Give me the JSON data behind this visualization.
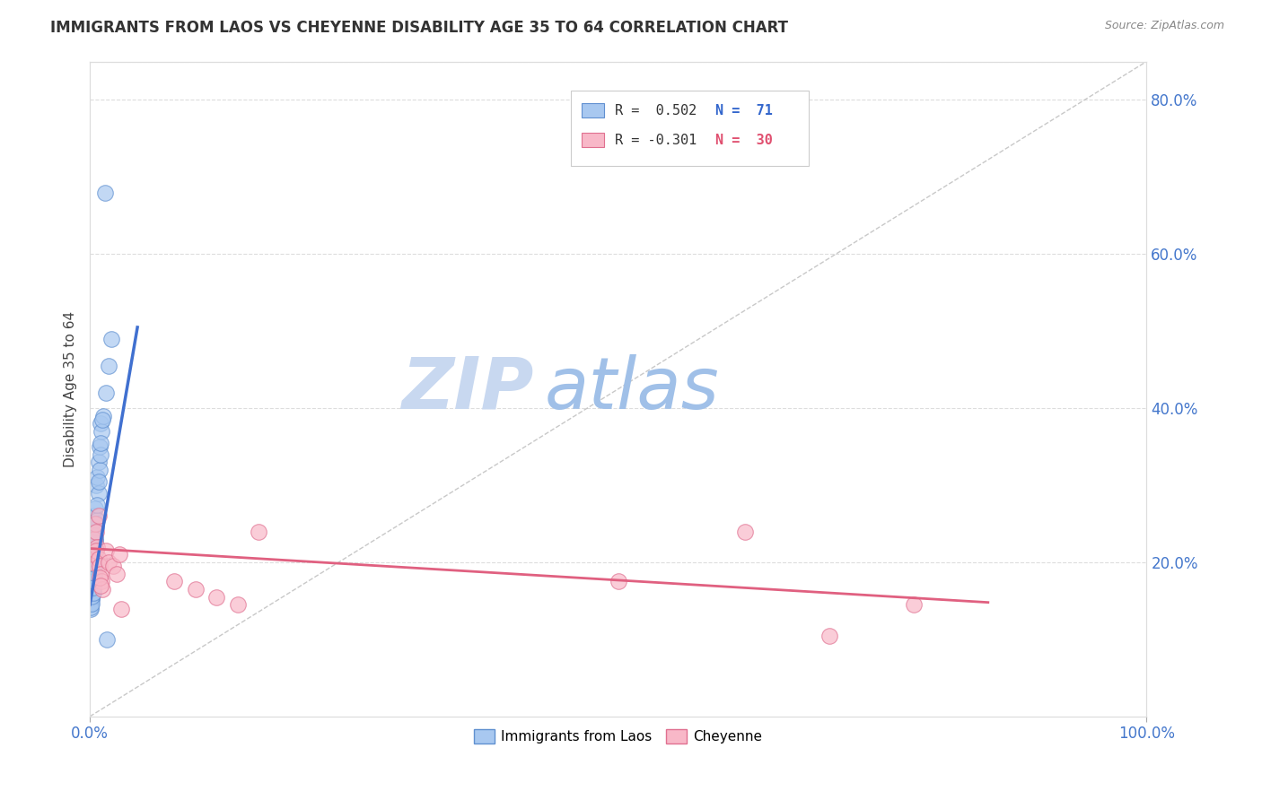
{
  "title": "IMMIGRANTS FROM LAOS VS CHEYENNE DISABILITY AGE 35 TO 64 CORRELATION CHART",
  "source": "Source: ZipAtlas.com",
  "ylabel": "Disability Age 35 to 64",
  "xlim": [
    0.0,
    1.0
  ],
  "ylim": [
    0.0,
    0.85
  ],
  "xtick_positions": [
    0.0,
    1.0
  ],
  "xtick_labels": [
    "0.0%",
    "100.0%"
  ],
  "ytick_positions": [
    0.0,
    0.2,
    0.4,
    0.6,
    0.8
  ],
  "ytick_labels": [
    "",
    "20.0%",
    "40.0%",
    "60.0%",
    "80.0%"
  ],
  "blue_color": "#A8C8F0",
  "pink_color": "#F8B8C8",
  "blue_edge": "#6090D0",
  "pink_edge": "#E07090",
  "blue_line_color": "#4070D0",
  "pink_line_color": "#E06080",
  "ref_line_color": "#BBBBBB",
  "watermark_zip": "ZIP",
  "watermark_atlas": "atlas",
  "watermark_color_zip": "#C8D8F0",
  "watermark_color_atlas": "#A0C0E8",
  "legend_r_blue": "R =  0.502",
  "legend_n_blue": "N =  71",
  "legend_r_pink": "R = -0.301",
  "legend_n_pink": "N =  30",
  "legend_label_blue": "Immigrants from Laos",
  "legend_label_pink": "Cheyenne",
  "blue_R": 0.502,
  "blue_N": 71,
  "pink_R": -0.301,
  "pink_N": 30,
  "blue_x": [
    0.001,
    0.002,
    0.001,
    0.003,
    0.002,
    0.001,
    0.002,
    0.003,
    0.001,
    0.002,
    0.003,
    0.004,
    0.002,
    0.003,
    0.001,
    0.002,
    0.003,
    0.002,
    0.003,
    0.002,
    0.004,
    0.005,
    0.003,
    0.004,
    0.005,
    0.006,
    0.007,
    0.008,
    0.009,
    0.01,
    0.001,
    0.001,
    0.002,
    0.002,
    0.002,
    0.003,
    0.003,
    0.004,
    0.002,
    0.004,
    0.004,
    0.005,
    0.005,
    0.006,
    0.007,
    0.008,
    0.009,
    0.01,
    0.011,
    0.013,
    0.001,
    0.001,
    0.002,
    0.002,
    0.003,
    0.003,
    0.003,
    0.004,
    0.004,
    0.005,
    0.005,
    0.006,
    0.007,
    0.008,
    0.014,
    0.01,
    0.012,
    0.015,
    0.018,
    0.02,
    0.016
  ],
  "blue_y": [
    0.18,
    0.17,
    0.16,
    0.175,
    0.165,
    0.155,
    0.185,
    0.195,
    0.15,
    0.168,
    0.2,
    0.21,
    0.188,
    0.178,
    0.162,
    0.158,
    0.172,
    0.182,
    0.192,
    0.166,
    0.22,
    0.23,
    0.24,
    0.26,
    0.27,
    0.3,
    0.31,
    0.33,
    0.35,
    0.38,
    0.145,
    0.148,
    0.152,
    0.157,
    0.153,
    0.163,
    0.173,
    0.183,
    0.159,
    0.193,
    0.205,
    0.215,
    0.228,
    0.245,
    0.255,
    0.29,
    0.32,
    0.34,
    0.37,
    0.39,
    0.14,
    0.142,
    0.147,
    0.156,
    0.16,
    0.167,
    0.176,
    0.186,
    0.198,
    0.218,
    0.235,
    0.25,
    0.275,
    0.305,
    0.68,
    0.355,
    0.385,
    0.42,
    0.455,
    0.49,
    0.1
  ],
  "pink_x": [
    0.002,
    0.003,
    0.004,
    0.005,
    0.006,
    0.007,
    0.006,
    0.008,
    0.009,
    0.01,
    0.011,
    0.012,
    0.009,
    0.01,
    0.008,
    0.015,
    0.018,
    0.022,
    0.025,
    0.028,
    0.03,
    0.08,
    0.1,
    0.12,
    0.14,
    0.16,
    0.5,
    0.62,
    0.7,
    0.78
  ],
  "pink_y": [
    0.2,
    0.21,
    0.23,
    0.25,
    0.24,
    0.22,
    0.215,
    0.205,
    0.195,
    0.185,
    0.175,
    0.165,
    0.18,
    0.17,
    0.26,
    0.215,
    0.2,
    0.195,
    0.185,
    0.21,
    0.14,
    0.175,
    0.165,
    0.155,
    0.145,
    0.24,
    0.175,
    0.24,
    0.105,
    0.145
  ],
  "blue_trend_x": [
    0.0,
    0.045
  ],
  "blue_trend_y": [
    0.145,
    0.505
  ],
  "pink_trend_x": [
    0.0,
    0.85
  ],
  "pink_trend_y": [
    0.218,
    0.148
  ],
  "ref_line_x": [
    0.0,
    1.0
  ],
  "ref_line_y": [
    0.0,
    0.85
  ]
}
